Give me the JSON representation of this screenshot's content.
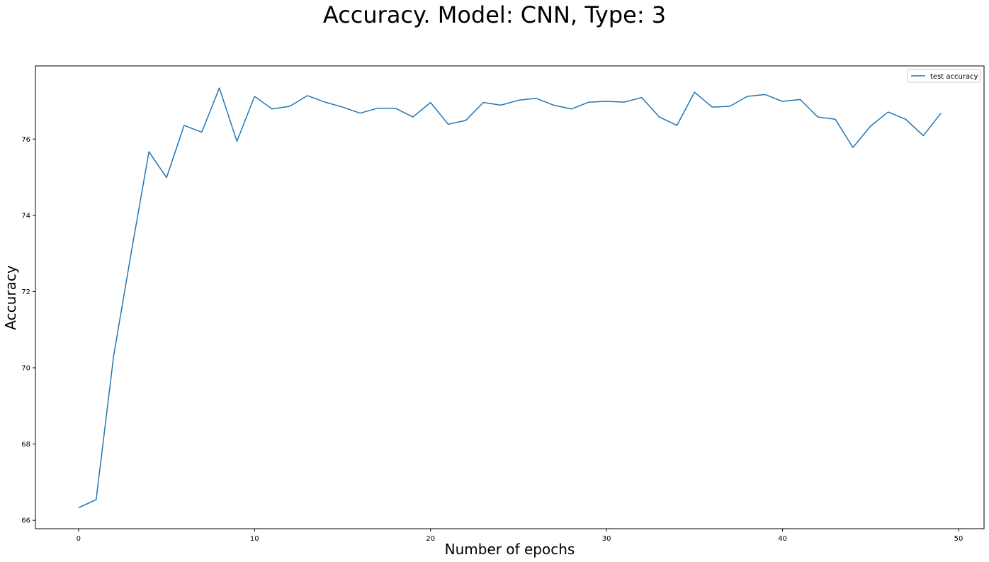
{
  "chart_data": {
    "type": "line",
    "title": "Accuracy. Model: CNN, Type: 3",
    "xlabel": "Number of epochs",
    "ylabel": "Accuracy",
    "xlim": [
      -2.45,
      51.45
    ],
    "ylim": [
      65.78,
      77.92
    ],
    "xticks": [
      0,
      10,
      20,
      30,
      40,
      50
    ],
    "yticks": [
      66,
      68,
      70,
      72,
      74,
      76
    ],
    "grid": false,
    "legend_position": "top-right",
    "series": [
      {
        "name": "test accuracy",
        "color": "#1f77b4",
        "x": [
          0,
          1,
          2,
          3,
          4,
          5,
          6,
          7,
          8,
          9,
          10,
          11,
          12,
          13,
          14,
          15,
          16,
          17,
          18,
          19,
          20,
          21,
          22,
          23,
          24,
          25,
          26,
          27,
          28,
          29,
          30,
          31,
          32,
          33,
          34,
          35,
          36,
          37,
          38,
          39,
          40,
          41,
          42,
          43,
          44,
          45,
          46,
          47,
          48,
          49
        ],
        "y": [
          66.33,
          66.54,
          70.33,
          73.04,
          75.67,
          74.99,
          76.36,
          76.18,
          77.34,
          75.94,
          77.12,
          76.79,
          76.86,
          77.14,
          76.97,
          76.84,
          76.68,
          76.81,
          76.81,
          76.58,
          76.96,
          76.39,
          76.49,
          76.96,
          76.89,
          77.02,
          77.07,
          76.89,
          76.79,
          76.97,
          76.99,
          76.97,
          77.09,
          76.58,
          76.36,
          77.23,
          76.84,
          76.86,
          77.12,
          77.17,
          76.99,
          77.04,
          76.58,
          76.52,
          75.78,
          76.34,
          76.71,
          76.52,
          76.09,
          76.68
        ]
      }
    ]
  }
}
